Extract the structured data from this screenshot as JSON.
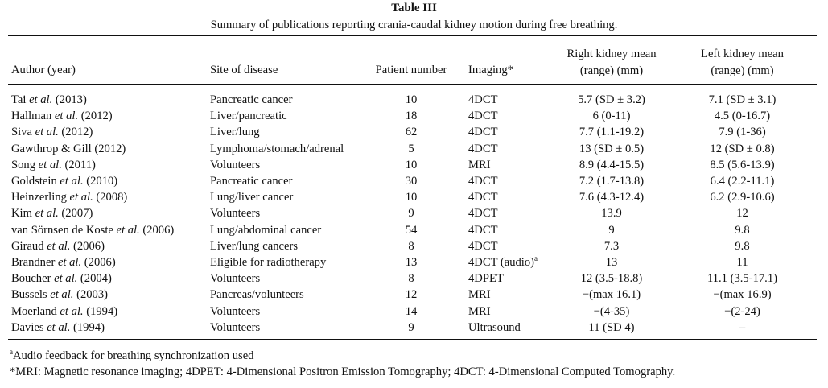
{
  "table": {
    "title": "Table III",
    "caption": "Summary of publications reporting crania-caudal kidney motion during free breathing.",
    "headers": {
      "author": "Author (year)",
      "site": "Site of disease",
      "patients": "Patient number",
      "imaging": "Imaging*",
      "right_line1": "Right kidney mean",
      "right_line2": "(range) (mm)",
      "left_line1": "Left kidney mean",
      "left_line2": "(range) (mm)"
    },
    "rows": [
      {
        "author_name": "Tai ",
        "author_etal": "et al.",
        "author_year": " (2013)",
        "site": "Pancreatic cancer",
        "patients": "10",
        "imaging": "4DCT",
        "imaging_sup": "",
        "right": "5.7 (SD ± 3.2)",
        "left": "7.1 (SD ± 3.1)"
      },
      {
        "author_name": "Hallman ",
        "author_etal": "et al.",
        "author_year": " (2012)",
        "site": "Liver/pancreatic",
        "patients": "18",
        "imaging": "4DCT",
        "imaging_sup": "",
        "right": "6 (0-11)",
        "left": "4.5 (0-16.7)"
      },
      {
        "author_name": "Siva ",
        "author_etal": "et al.",
        "author_year": " (2012)",
        "site": "Liver/lung",
        "patients": "62",
        "imaging": "4DCT",
        "imaging_sup": "",
        "right": "7.7 (1.1-19.2)",
        "left": "7.9 (1-36)"
      },
      {
        "author_name": "Gawthrop & Gill (2012)",
        "author_etal": "",
        "author_year": "",
        "site": "Lymphoma/stomach/adrenal",
        "patients": "5",
        "imaging": "4DCT",
        "imaging_sup": "",
        "right": "13 (SD ± 0.5)",
        "left": "12 (SD ± 0.8)"
      },
      {
        "author_name": "Song ",
        "author_etal": "et al.",
        "author_year": " (2011)",
        "site": "Volunteers",
        "patients": "10",
        "imaging": "MRI",
        "imaging_sup": "",
        "right": "8.9 (4.4-15.5)",
        "left": "8.5 (5.6-13.9)"
      },
      {
        "author_name": "Goldstein ",
        "author_etal": "et al.",
        "author_year": " (2010)",
        "site": "Pancreatic cancer",
        "patients": "30",
        "imaging": "4DCT",
        "imaging_sup": "",
        "right": "7.2 (1.7-13.8)",
        "left": "6.4 (2.2-11.1)"
      },
      {
        "author_name": "Heinzerling ",
        "author_etal": "et al.",
        "author_year": " (2008)",
        "site": "Lung/liver cancer",
        "patients": "10",
        "imaging": "4DCT",
        "imaging_sup": "",
        "right": "7.6 (4.3-12.4)",
        "left": "6.2 (2.9-10.6)"
      },
      {
        "author_name": "Kim ",
        "author_etal": "et al.",
        "author_year": " (2007)",
        "site": "Volunteers",
        "patients": "9",
        "imaging": "4DCT",
        "imaging_sup": "",
        "right": "13.9",
        "left": "12"
      },
      {
        "author_name": "van Sörnsen de Koste ",
        "author_etal": "et al.",
        "author_year": " (2006)",
        "site": "Lung/abdominal cancer",
        "patients": "54",
        "imaging": "4DCT",
        "imaging_sup": "",
        "right": "9",
        "left": "9.8"
      },
      {
        "author_name": "Giraud ",
        "author_etal": "et al.",
        "author_year": " (2006)",
        "site": "Liver/lung cancers",
        "patients": "8",
        "imaging": "4DCT",
        "imaging_sup": "",
        "right": "7.3",
        "left": "9.8"
      },
      {
        "author_name": "Brandner ",
        "author_etal": "et al.",
        "author_year": " (2006)",
        "site": "Eligible for radiotherapy",
        "patients": "13",
        "imaging": "4DCT (audio)",
        "imaging_sup": "a",
        "right": "13",
        "left": "11"
      },
      {
        "author_name": "Boucher ",
        "author_etal": "et al.",
        "author_year": " (2004)",
        "site": "Volunteers",
        "patients": "8",
        "imaging": "4DPET",
        "imaging_sup": "",
        "right": "12 (3.5-18.8)",
        "left": "11.1 (3.5-17.1)"
      },
      {
        "author_name": "Bussels ",
        "author_etal": "et al.",
        "author_year": " (2003)",
        "site": "Pancreas/volunteers",
        "patients": "12",
        "imaging": "MRI",
        "imaging_sup": "",
        "right": "−(max 16.1)",
        "left": "−(max 16.9)"
      },
      {
        "author_name": "Moerland ",
        "author_etal": "et al.",
        "author_year": " (1994)",
        "site": "Volunteers",
        "patients": "14",
        "imaging": "MRI",
        "imaging_sup": "",
        "right": "−(4-35)",
        "left": "−(2-24)"
      },
      {
        "author_name": "Davies ",
        "author_etal": "et al.",
        "author_year": " (1994)",
        "site": "Volunteers",
        "patients": "9",
        "imaging": "Ultrasound",
        "imaging_sup": "",
        "right": "11 (SD 4)",
        "left": "–"
      }
    ],
    "footnotes": {
      "a_mark": "a",
      "a_text": "Audio feedback for breathing synchronization used",
      "star": "*MRI: Magnetic resonance imaging; 4DPET: 4-Dimensional Positron Emission Tomography; 4DCT: 4-Dimensional Computed Tomography."
    }
  }
}
